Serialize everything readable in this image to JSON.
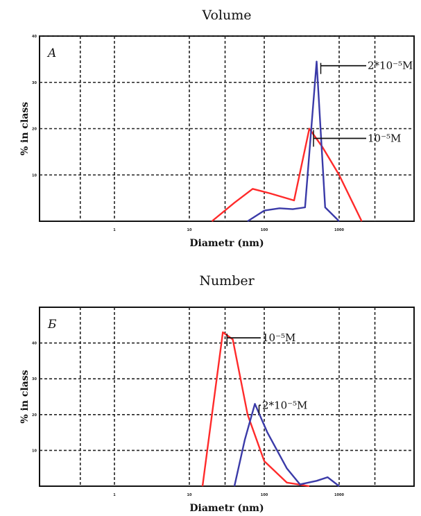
{
  "chart_data": [
    {
      "type": "line",
      "title": "Volume",
      "panel_label": "A",
      "xlabel": "Diametr (nm)",
      "ylabel": "% in class",
      "x_scale": "log",
      "xlim": [
        0.1,
        10000
      ],
      "ylim": [
        0,
        40
      ],
      "x_ticks": [
        1,
        10,
        100,
        1000
      ],
      "x_tick_labels": [
        "1",
        "10",
        "100",
        "1000"
      ],
      "y_ticks": [
        10,
        20,
        30,
        40
      ],
      "y_tick_labels": [
        "10",
        "20",
        "30",
        "40"
      ],
      "grid": true,
      "series": [
        {
          "name": "10⁻⁵M",
          "color": "#ff2a2a",
          "x": [
            20,
            40,
            70,
            120,
            250,
            400,
            600,
            1000,
            2000
          ],
          "y": [
            0,
            4,
            7,
            6,
            4.5,
            20,
            16,
            10,
            0
          ]
        },
        {
          "name": "2*10⁻⁵M",
          "color": "#3a3aa8",
          "x": [
            60,
            100,
            160,
            240,
            350,
            500,
            650,
            1000
          ],
          "y": [
            0,
            2.3,
            2.8,
            2.6,
            3,
            34.5,
            3,
            0
          ]
        }
      ],
      "annotations": [
        {
          "text": "2*10⁻⁵M",
          "series": "2*10⁻⁵M"
        },
        {
          "text": "10⁻⁵M",
          "series": "10⁻⁵M"
        }
      ]
    },
    {
      "type": "line",
      "title": "Number",
      "panel_label": "Б",
      "xlabel": "Diametr (nm)",
      "ylabel": "% in class",
      "x_scale": "log",
      "xlim": [
        0.1,
        10000
      ],
      "ylim": [
        0,
        50
      ],
      "x_ticks": [
        1,
        10,
        100,
        1000
      ],
      "x_tick_labels": [
        "1",
        "10",
        "100",
        "1000"
      ],
      "y_ticks": [
        10,
        20,
        30,
        40
      ],
      "y_tick_labels": [
        "10",
        "20",
        "30",
        "40"
      ],
      "grid": true,
      "series": [
        {
          "name": "10⁻⁵M",
          "color": "#ff2a2a",
          "x": [
            15,
            28,
            38,
            60,
            100,
            200,
            400
          ],
          "y": [
            0,
            43,
            41,
            20,
            7,
            1,
            0
          ]
        },
        {
          "name": "2*10⁻⁵M",
          "color": "#3a3aa8",
          "x": [
            40,
            55,
            75,
            110,
            200,
            300,
            500,
            700,
            1000
          ],
          "y": [
            0,
            13,
            23,
            15,
            5,
            0.5,
            1.5,
            2.5,
            0
          ]
        }
      ],
      "annotations": [
        {
          "text": "10⁻⁵M",
          "series": "10⁻⁵M"
        },
        {
          "text": "2*10⁻⁵M",
          "series": "2*10⁻⁵M"
        }
      ]
    }
  ]
}
